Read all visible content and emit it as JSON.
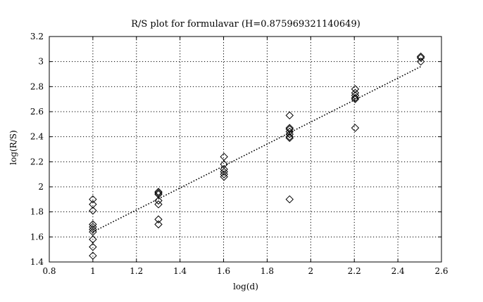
{
  "chart_data": {
    "type": "scatter",
    "title": "R/S plot for formulavar (H=0.875969321140649)",
    "xlabel": "log(d)",
    "ylabel": "log(R/S)",
    "xlim": [
      0.8,
      2.6
    ],
    "ylim": [
      1.4,
      3.2
    ],
    "xticks": [
      0.8,
      1,
      1.2,
      1.4,
      1.6,
      1.8,
      2,
      2.2,
      2.4,
      2.6
    ],
    "xtick_labels": [
      "0.8",
      "1",
      "1.2",
      "1.4",
      "1.6",
      "1.8",
      "2",
      "2.2",
      "2.4",
      "2.6"
    ],
    "yticks": [
      1.4,
      1.6,
      1.8,
      2,
      2.2,
      2.4,
      2.6,
      2.8,
      3,
      3.2
    ],
    "ytick_labels": [
      "1.4",
      "1.6",
      "1.8",
      "2",
      "2.2",
      "2.4",
      "2.6",
      "2.8",
      "3",
      "3.2"
    ],
    "grid": true,
    "marker": "diamond",
    "series": [
      {
        "points": [
          {
            "x": 1.0,
            "y": 1.9
          },
          {
            "x": 1.0,
            "y": 1.86
          },
          {
            "x": 1.0,
            "y": 1.81
          },
          {
            "x": 1.0,
            "y": 1.7
          },
          {
            "x": 1.0,
            "y": 1.68
          },
          {
            "x": 1.0,
            "y": 1.66
          },
          {
            "x": 1.0,
            "y": 1.64
          },
          {
            "x": 1.0,
            "y": 1.58
          },
          {
            "x": 1.0,
            "y": 1.52
          },
          {
            "x": 1.0,
            "y": 1.45
          },
          {
            "x": 1.301,
            "y": 1.96
          },
          {
            "x": 1.301,
            "y": 1.95
          },
          {
            "x": 1.301,
            "y": 1.94
          },
          {
            "x": 1.301,
            "y": 1.89
          },
          {
            "x": 1.301,
            "y": 1.86
          },
          {
            "x": 1.301,
            "y": 1.74
          },
          {
            "x": 1.301,
            "y": 1.7
          },
          {
            "x": 1.602,
            "y": 2.24
          },
          {
            "x": 1.602,
            "y": 2.18
          },
          {
            "x": 1.602,
            "y": 2.14
          },
          {
            "x": 1.602,
            "y": 2.12
          },
          {
            "x": 1.602,
            "y": 2.1
          },
          {
            "x": 1.602,
            "y": 2.08
          },
          {
            "x": 1.903,
            "y": 2.57
          },
          {
            "x": 1.903,
            "y": 2.47
          },
          {
            "x": 1.903,
            "y": 2.46
          },
          {
            "x": 1.903,
            "y": 2.44
          },
          {
            "x": 1.903,
            "y": 2.42
          },
          {
            "x": 1.903,
            "y": 2.4
          },
          {
            "x": 1.903,
            "y": 2.39
          },
          {
            "x": 1.903,
            "y": 1.9
          },
          {
            "x": 2.204,
            "y": 2.78
          },
          {
            "x": 2.204,
            "y": 2.75
          },
          {
            "x": 2.204,
            "y": 2.73
          },
          {
            "x": 2.204,
            "y": 2.71
          },
          {
            "x": 2.204,
            "y": 2.7
          },
          {
            "x": 2.204,
            "y": 2.47
          },
          {
            "x": 2.505,
            "y": 3.04
          },
          {
            "x": 2.505,
            "y": 3.03
          },
          {
            "x": 2.505,
            "y": 3.0
          }
        ]
      }
    ],
    "fit_line": {
      "x": [
        1.0,
        2.505
      ],
      "y": [
        1.64,
        2.96
      ]
    }
  }
}
